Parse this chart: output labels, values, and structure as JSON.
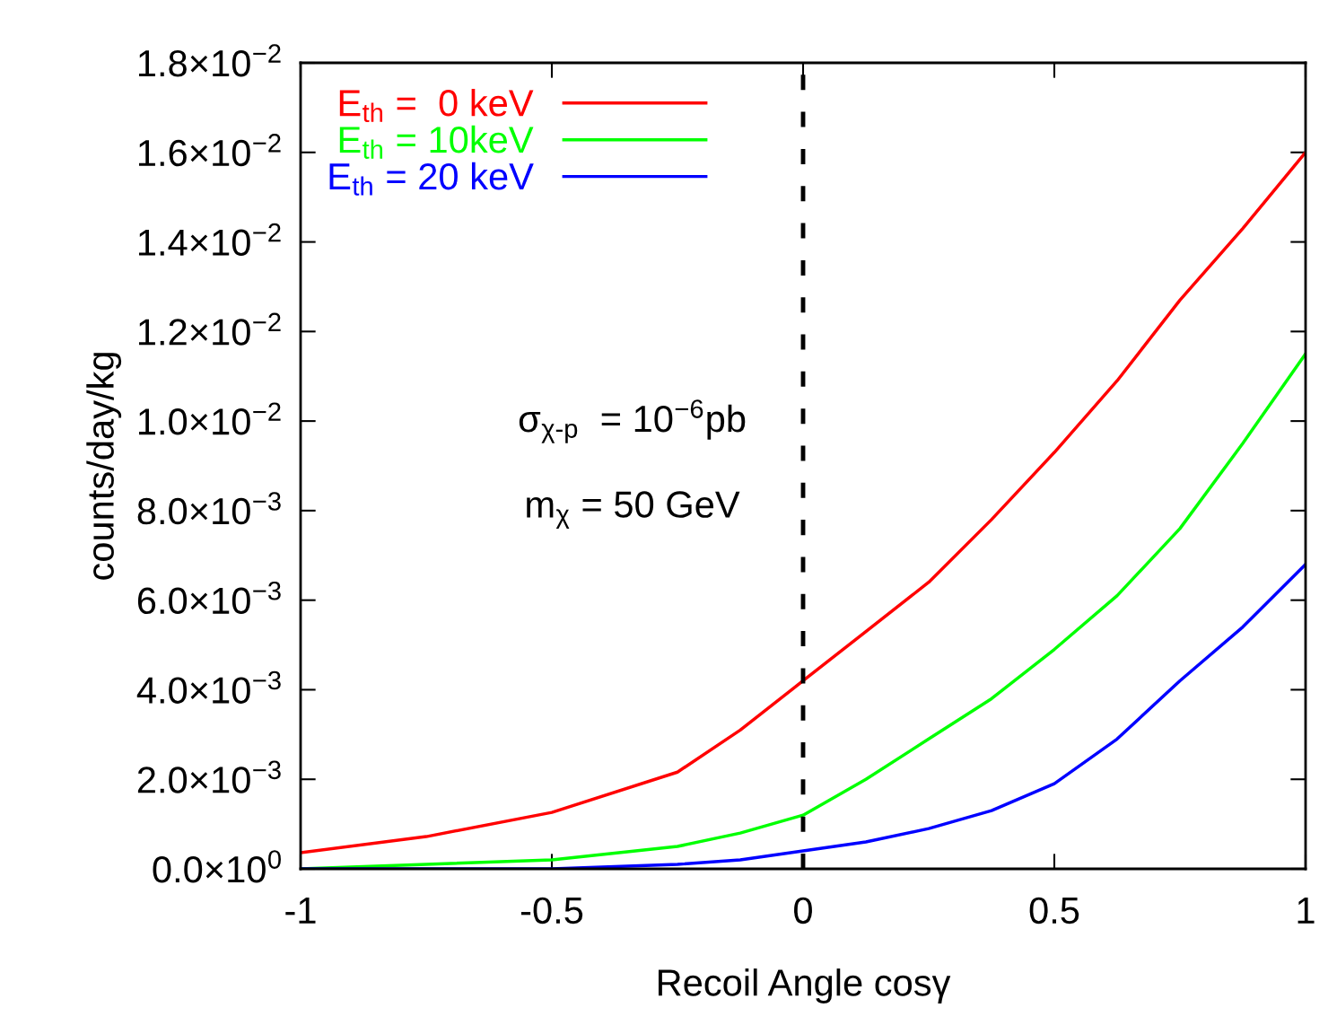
{
  "chart_data": {
    "type": "line",
    "xlabel": "Recoil Angle cosγ",
    "ylabel": "counts/day/kg",
    "x": [
      -1,
      -0.75,
      -0.5,
      -0.25,
      -0.125,
      0,
      0.125,
      0.25,
      0.375,
      0.5,
      0.625,
      0.75,
      0.875,
      1
    ],
    "series": [
      {
        "name": "E$_{th}$ =  0 keV",
        "color": "#ff0000",
        "values": [
          0.00036,
          0.00072,
          0.00126,
          0.00216,
          0.0031,
          0.0042,
          0.0053,
          0.0064,
          0.0078,
          0.0093,
          0.0109,
          0.0127,
          0.0143,
          0.016
        ]
      },
      {
        "name": "E$_{th}$ = 10keV",
        "color": "#00ff00",
        "values": [
          0.0,
          0.0001,
          0.0002,
          0.0005,
          0.0008,
          0.0012,
          0.002,
          0.0029,
          0.0038,
          0.0049,
          0.0061,
          0.0076,
          0.0095,
          0.0115
        ]
      },
      {
        "name": "E$_{th}$ = 20 keV",
        "color": "#0000ff",
        "values": [
          0.0,
          0.0,
          0.0,
          0.0001,
          0.0002,
          0.0004,
          0.0006,
          0.0009,
          0.0013,
          0.0019,
          0.0029,
          0.0042,
          0.0054,
          0.0068
        ]
      }
    ],
    "xlim": [
      -1,
      1
    ],
    "xticks": [
      -1,
      -0.5,
      0,
      0.5,
      1
    ],
    "ylim": [
      0,
      0.018
    ],
    "yticks": [
      {
        "value": 0,
        "label": "0.0×10$^{0}$"
      },
      {
        "value": 0.002,
        "label": "2.0×10$^{−3}$"
      },
      {
        "value": 0.004,
        "label": "4.0×10$^{−3}$"
      },
      {
        "value": 0.006,
        "label": "6.0×10$^{−3}$"
      },
      {
        "value": 0.008,
        "label": "8.0×10$^{−3}$"
      },
      {
        "value": 0.01,
        "label": "1.0×10$^{−2}$"
      },
      {
        "value": 0.012,
        "label": "1.2×10$^{−2}$"
      },
      {
        "value": 0.014,
        "label": "1.4×10$^{−2}$"
      },
      {
        "value": 0.016,
        "label": "1.6×10$^{−2}$"
      },
      {
        "value": 0.018,
        "label": "1.8×10$^{−2}$"
      }
    ],
    "ref_lines": [
      {
        "axis": "x",
        "value": 0,
        "color": "#000000",
        "line_style": "dashed"
      }
    ],
    "annotations": [
      "σ$_{χ-p}$  = 10$^{−6}$pb",
      "m$_{χ}$ = 50 GeV"
    ],
    "legend": "top left",
    "grid": false,
    "marker": "none",
    "line_style": "solid"
  }
}
